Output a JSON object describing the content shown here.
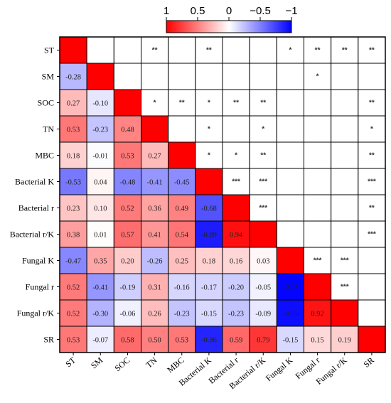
{
  "chart_data": {
    "type": "heatmap",
    "variables": [
      "ST",
      "SM",
      "SOC",
      "TN",
      "MBC",
      "Bacterial K",
      "Bacterial r",
      "Bacterial r/K",
      "Fungal K",
      "Fungal r",
      "Fungal r/K",
      "SR"
    ],
    "lower_values": [
      [],
      [
        "-0.28"
      ],
      [
        "0.27",
        "-0.10"
      ],
      [
        "0.53",
        "-0.23",
        "0.48"
      ],
      [
        "0.18",
        "-0.01",
        "0.53",
        "0.27"
      ],
      [
        "-0.53",
        "0.04",
        "-0.48",
        "-0.41",
        "-0.45"
      ],
      [
        "0.23",
        "0.10",
        "0.52",
        "0.36",
        "0.49",
        "-0.68"
      ],
      [
        "0.38",
        "0.01",
        "0.57",
        "0.41",
        "0.54",
        "-0.89",
        "0.94"
      ],
      [
        "-0.47",
        "0.35",
        "0.20",
        "-0.26",
        "0.25",
        "0.18",
        "0.16",
        "0.03"
      ],
      [
        "0.52",
        "-0.41",
        "-0.19",
        "0.31",
        "-0.16",
        "-0.17",
        "-0.20",
        "-0.05",
        "-0.98"
      ],
      [
        "0.52",
        "-0.30",
        "-0.06",
        "0.26",
        "-0.23",
        "-0.15",
        "-0.23",
        "-0.09",
        "-0.95",
        "0.92"
      ],
      [
        "0.53",
        "-0.07",
        "0.58",
        "0.50",
        "0.53",
        "-0.86",
        "0.59",
        "0.79",
        "-0.15",
        "0.15",
        "0.19"
      ]
    ],
    "upper_significance": [
      [
        "",
        "",
        "",
        "**",
        "",
        "**",
        "",
        "",
        "*",
        "**",
        "**",
        "**"
      ],
      [
        "",
        "",
        "",
        "",
        "",
        "",
        "",
        "",
        "",
        "*",
        "",
        ""
      ],
      [
        "",
        "",
        "",
        "*",
        "**",
        "*",
        "**",
        "**",
        "",
        "",
        "",
        "**"
      ],
      [
        "",
        "",
        "",
        "",
        "",
        "*",
        "",
        "*",
        "",
        "",
        "",
        "*"
      ],
      [
        "",
        "",
        "",
        "",
        "",
        "*",
        "*",
        "**",
        "",
        "",
        "",
        "**"
      ],
      [
        "",
        "",
        "",
        "",
        "",
        "",
        "***",
        "***",
        "",
        "",
        "",
        "***"
      ],
      [
        "",
        "",
        "",
        "",
        "",
        "",
        "",
        "***",
        "",
        "",
        "",
        "**"
      ],
      [
        "",
        "",
        "",
        "",
        "",
        "",
        "",
        "",
        "",
        "",
        "",
        "***"
      ],
      [
        "",
        "",
        "",
        "",
        "",
        "",
        "",
        "",
        "",
        "***",
        "***",
        ""
      ],
      [
        "",
        "",
        "",
        "",
        "",
        "",
        "",
        "",
        "",
        "",
        "***",
        ""
      ],
      [
        "",
        "",
        "",
        "",
        "",
        "",
        "",
        "",
        "",
        "",
        "",
        ""
      ],
      [
        "",
        "",
        "",
        "",
        "",
        "",
        "",
        "",
        "",
        "",
        "",
        ""
      ]
    ],
    "colorbar": {
      "ticks": [
        "1",
        "0.5",
        "0",
        "−0.5",
        "−1"
      ],
      "range": [
        1,
        -1
      ],
      "high_color": "#ff0000",
      "mid_color": "#ffffff",
      "low_color": "#0000ff"
    },
    "diagonal_color": "#ff0000"
  }
}
